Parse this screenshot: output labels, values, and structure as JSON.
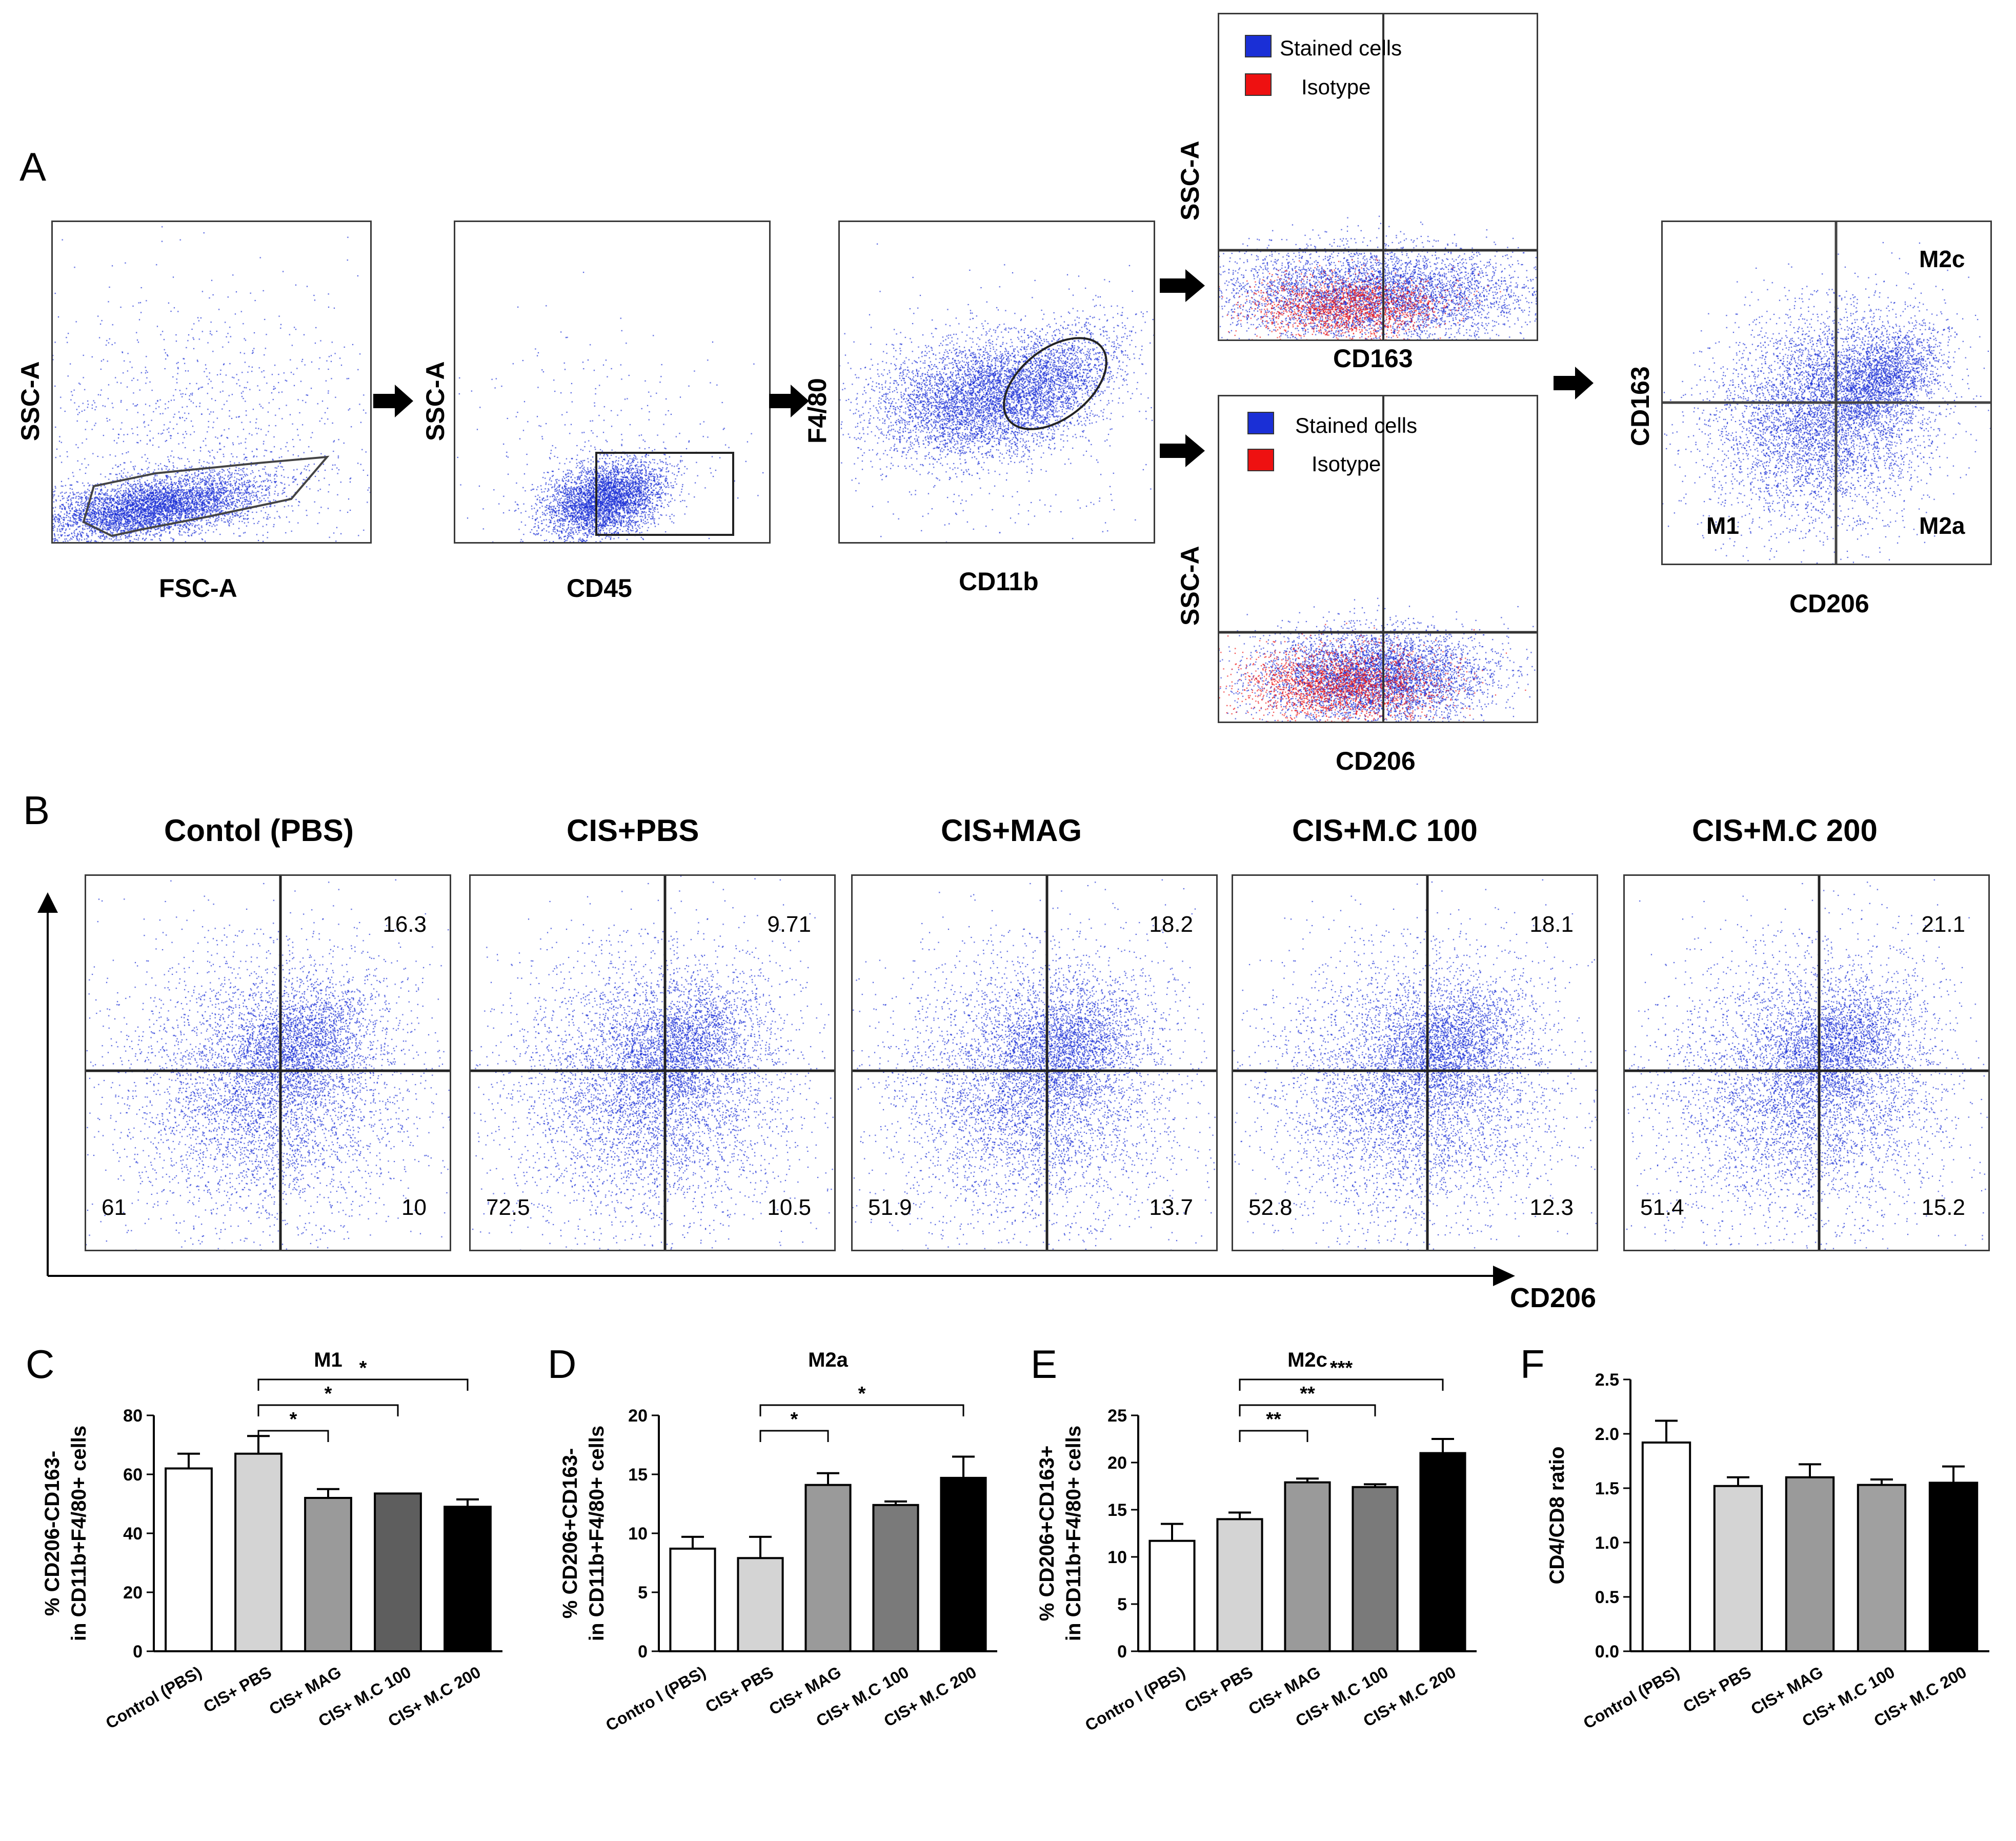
{
  "panel_a": {
    "letter": "A",
    "fsc_plot": {
      "xlabel": "FSC-A",
      "ylabel": "SSC-A"
    },
    "cd45_plot": {
      "xlabel": "CD45",
      "ylabel": "SSC-A"
    },
    "cd11b_plot": {
      "xlabel": "CD11b",
      "ylabel": "F4/80"
    },
    "cd163_hist": {
      "xlabel": "CD163",
      "ylabel": "SSC-A",
      "legend": [
        "Stained cells",
        "Isotype"
      ]
    },
    "cd206_hist": {
      "xlabel": "CD206",
      "ylabel": "SSC-A",
      "legend": [
        "Stained cells",
        "Isotype"
      ]
    },
    "quad_plot": {
      "xlabel": "CD206",
      "ylabel": "CD163",
      "quadrants": {
        "upper_right": "M2c",
        "lower_left": "M1",
        "lower_right": "M2a"
      }
    },
    "colors": {
      "stained": "#1a2fd6",
      "isotype": "#ee1111"
    }
  },
  "panel_b": {
    "letter": "B",
    "axis_label": "CD206",
    "groups": [
      {
        "title": "Contol (PBS)",
        "ur": "16.3",
        "ll": "61",
        "lr": "10"
      },
      {
        "title": "CIS+PBS",
        "ur": "9.71",
        "ll": "72.5",
        "lr": "10.5"
      },
      {
        "title": "CIS+MAG",
        "ur": "18.2",
        "ll": "51.9",
        "lr": "13.7"
      },
      {
        "title": "CIS+M.C 100",
        "ur": "18.1",
        "ll": "52.8",
        "lr": "12.3"
      },
      {
        "title": "CIS+M.C 200",
        "ur": "21.1",
        "ll": "51.4",
        "lr": "15.2"
      }
    ]
  },
  "chart_data": [
    {
      "panel": "C",
      "type": "bar",
      "title": "M1",
      "ylabel": "% CD206-CD163-\nin CD11b+F4/80+ cells",
      "categories": [
        "Control (PBS)",
        "CIS+ PBS",
        "CIS+ MAG",
        "CIS+ M.C 100",
        "CIS+ M.C 200"
      ],
      "values": [
        62,
        67,
        52,
        53.5,
        49
      ],
      "errors": [
        5,
        6,
        3,
        0,
        2.5
      ],
      "ylim": [
        0,
        80
      ],
      "yticks": [
        0,
        20,
        40,
        60,
        80
      ],
      "bar_colors": [
        "#ffffff",
        "#d4d4d4",
        "#9a9a9a",
        "#5e5e5e",
        "#000000"
      ],
      "significance": [
        {
          "from": 1,
          "to": 2,
          "label": "*"
        },
        {
          "from": 1,
          "to": 3,
          "label": "*"
        },
        {
          "from": 1,
          "to": 4,
          "label": "*"
        }
      ]
    },
    {
      "panel": "D",
      "type": "bar",
      "title": "M2a",
      "ylabel": "% CD206+CD163-\nin CD11b+F4/80+ cells",
      "categories": [
        "Contro l (PBS)",
        "CIS+ PBS",
        "CIS+ MAG",
        "CIS+ M.C 100",
        "CIS+ M.C 200"
      ],
      "values": [
        8.7,
        7.9,
        14.1,
        12.4,
        14.7
      ],
      "errors": [
        1.0,
        1.8,
        1.0,
        0.3,
        1.8
      ],
      "ylim": [
        0,
        20
      ],
      "yticks": [
        0,
        5,
        10,
        15,
        20
      ],
      "bar_colors": [
        "#ffffff",
        "#d4d4d4",
        "#9a9a9a",
        "#7a7a7a",
        "#000000"
      ],
      "significance": [
        {
          "from": 1,
          "to": 2,
          "label": "*"
        },
        {
          "from": 1,
          "to": 4,
          "label": "*"
        }
      ]
    },
    {
      "panel": "E",
      "type": "bar",
      "title": "M2c",
      "ylabel": "% CD206+CD163+\nin CD11b+F4/80+ cells",
      "categories": [
        "Contro l (PBS)",
        "CIS+ PBS",
        "CIS+ MAG",
        "CIS+ M.C 100",
        "CIS+ M.C 200"
      ],
      "values": [
        11.7,
        14.0,
        17.9,
        17.4,
        21.0
      ],
      "errors": [
        1.8,
        0.7,
        0.4,
        0.3,
        1.5
      ],
      "ylim": [
        0,
        25
      ],
      "yticks": [
        0,
        5,
        10,
        15,
        20,
        25
      ],
      "bar_colors": [
        "#ffffff",
        "#d4d4d4",
        "#9a9a9a",
        "#7a7a7a",
        "#000000"
      ],
      "significance": [
        {
          "from": 1,
          "to": 2,
          "label": "**"
        },
        {
          "from": 1,
          "to": 3,
          "label": "**"
        },
        {
          "from": 1,
          "to": 4,
          "label": "***"
        }
      ]
    },
    {
      "panel": "F",
      "type": "bar",
      "title": "",
      "ylabel": "CD4/CD8 ratio",
      "categories": [
        "Control (PBS)",
        "CIS+ PBS",
        "CIS+ MAG",
        "CIS+ M.C 100",
        "CIS+ M.C 200"
      ],
      "values": [
        1.92,
        1.52,
        1.6,
        1.53,
        1.55
      ],
      "errors": [
        0.2,
        0.08,
        0.12,
        0.05,
        0.15
      ],
      "ylim": [
        0,
        2.5
      ],
      "yticks": [
        "0.0",
        "0.5",
        "1.0",
        "1.5",
        "2.0",
        "2.5"
      ],
      "bar_colors": [
        "#ffffff",
        "#d4d4d4",
        "#9a9a9a",
        "#a0a0a0",
        "#000000"
      ],
      "significance": []
    }
  ]
}
